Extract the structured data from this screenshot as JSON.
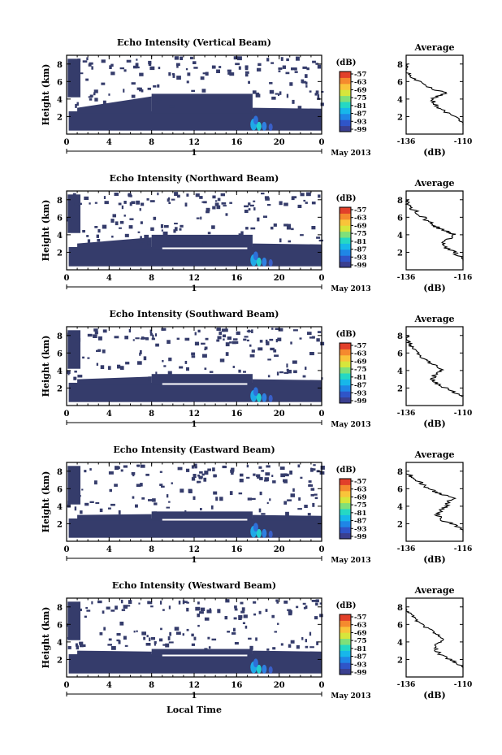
{
  "chart_data": {
    "type": "heatmap",
    "colors": {
      "background": "#ffffff",
      "echo_fill": "#353c6b",
      "line": "#000000",
      "colorbar": [
        "#3a3f8f",
        "#2f55c8",
        "#1f86e6",
        "#17b7ea",
        "#25d8c4",
        "#7fe07a",
        "#d6e63c",
        "#f9c43a",
        "#f58a2e",
        "#e2402a"
      ]
    },
    "date_label": "May 2013",
    "time_axis_ticks": [
      "0",
      "4",
      "8",
      "12",
      "16",
      "20",
      "0"
    ],
    "day_label": "1",
    "height_axis_ticks": [
      "2",
      "4",
      "6",
      "8"
    ],
    "ylabel": "Height (km)",
    "xlabel": "Local Time",
    "colorbar_label": "(dB)",
    "colorbar_ticks": [
      "-57",
      "-63",
      "-69",
      "-75",
      "-81",
      "-87",
      "-93",
      "-99"
    ],
    "average_title": "Average",
    "average_xlabel": "(dB)",
    "average_height_ticks": [
      "2",
      "4",
      "6",
      "8"
    ],
    "panels": [
      {
        "name": "vertical",
        "title": "Echo Intensity (Vertical Beam)",
        "average_xticks": [
          "-136",
          "-110"
        ],
        "average_profile": [
          [
            -109,
            1.0
          ],
          [
            -111,
            1.5
          ],
          [
            -113,
            2.0
          ],
          [
            -118,
            2.5
          ],
          [
            -121,
            3.0
          ],
          [
            -123,
            3.5
          ],
          [
            -124,
            4.0
          ],
          [
            -121,
            4.4
          ],
          [
            -117,
            4.7
          ],
          [
            -122,
            5.0
          ],
          [
            -127,
            5.5
          ],
          [
            -130,
            6.0
          ],
          [
            -133,
            6.5
          ],
          [
            -135,
            7.0
          ],
          [
            -136,
            7.5
          ],
          [
            -136,
            8.0
          ]
        ]
      },
      {
        "name": "northward",
        "title": "Echo Intensity (Northward Beam)",
        "average_xticks": [
          "-136",
          "-116"
        ],
        "average_profile": [
          [
            -114,
            1.0
          ],
          [
            -117,
            1.5
          ],
          [
            -119,
            2.0
          ],
          [
            -122,
            2.5
          ],
          [
            -123,
            3.0
          ],
          [
            -121,
            3.5
          ],
          [
            -119,
            4.0
          ],
          [
            -121,
            4.3
          ],
          [
            -124,
            4.7
          ],
          [
            -126,
            5.0
          ],
          [
            -128,
            5.5
          ],
          [
            -130,
            6.0
          ],
          [
            -132,
            6.5
          ],
          [
            -134,
            7.0
          ],
          [
            -136,
            7.5
          ],
          [
            -136,
            8.0
          ]
        ]
      },
      {
        "name": "southward",
        "title": "Echo Intensity (Southward Beam)",
        "average_xticks": [
          "-136",
          "-110"
        ],
        "average_profile": [
          [
            -110,
            1.0
          ],
          [
            -114,
            1.5
          ],
          [
            -118,
            2.0
          ],
          [
            -122,
            2.5
          ],
          [
            -124,
            3.0
          ],
          [
            -123,
            3.5
          ],
          [
            -120,
            4.0
          ],
          [
            -121,
            4.4
          ],
          [
            -125,
            4.8
          ],
          [
            -127,
            5.2
          ],
          [
            -130,
            5.8
          ],
          [
            -132,
            6.3
          ],
          [
            -134,
            6.8
          ],
          [
            -135,
            7.3
          ],
          [
            -136,
            8.0
          ]
        ]
      },
      {
        "name": "eastward",
        "title": "Echo Intensity (Eastward Beam)",
        "average_xticks": [
          "-136",
          "-116"
        ],
        "average_profile": [
          [
            -114,
            1.0
          ],
          [
            -117,
            1.5
          ],
          [
            -120,
            2.0
          ],
          [
            -124,
            2.5
          ],
          [
            -125,
            3.0
          ],
          [
            -124,
            3.5
          ],
          [
            -122,
            4.0
          ],
          [
            -121,
            4.5
          ],
          [
            -119,
            5.0
          ],
          [
            -123,
            5.3
          ],
          [
            -126,
            5.7
          ],
          [
            -129,
            6.2
          ],
          [
            -131,
            6.7
          ],
          [
            -133,
            7.2
          ],
          [
            -135,
            7.6
          ],
          [
            -136,
            8.0
          ]
        ]
      },
      {
        "name": "westward",
        "title": "Echo Intensity (Westward Beam)",
        "average_xticks": [
          "-136",
          "-110"
        ],
        "average_profile": [
          [
            -109,
            1.0
          ],
          [
            -112,
            1.5
          ],
          [
            -116,
            2.0
          ],
          [
            -120,
            2.5
          ],
          [
            -122,
            3.0
          ],
          [
            -123,
            3.5
          ],
          [
            -121,
            4.0
          ],
          [
            -119,
            4.4
          ],
          [
            -121,
            4.8
          ],
          [
            -124,
            5.2
          ],
          [
            -127,
            5.7
          ],
          [
            -130,
            6.2
          ],
          [
            -132,
            6.7
          ],
          [
            -134,
            7.2
          ],
          [
            -136,
            7.6
          ],
          [
            -136,
            8.0
          ]
        ]
      }
    ]
  }
}
